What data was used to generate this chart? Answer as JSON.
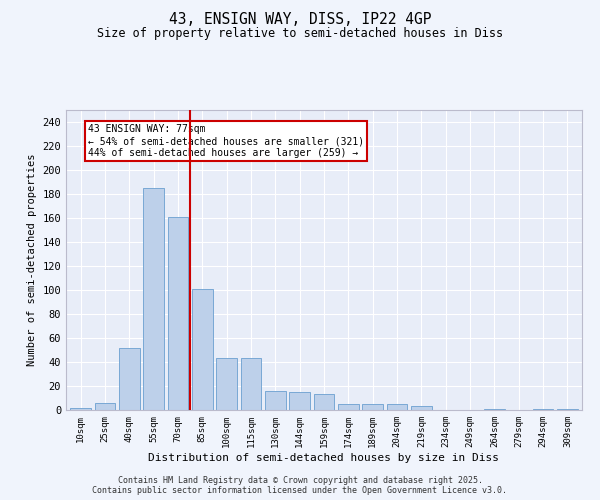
{
  "title1": "43, ENSIGN WAY, DISS, IP22 4GP",
  "title2": "Size of property relative to semi-detached houses in Diss",
  "xlabel": "Distribution of semi-detached houses by size in Diss",
  "ylabel": "Number of semi-detached properties",
  "bar_labels": [
    "10sqm",
    "25sqm",
    "40sqm",
    "55sqm",
    "70sqm",
    "85sqm",
    "100sqm",
    "115sqm",
    "130sqm",
    "144sqm",
    "159sqm",
    "174sqm",
    "189sqm",
    "204sqm",
    "219sqm",
    "234sqm",
    "249sqm",
    "264sqm",
    "279sqm",
    "294sqm",
    "309sqm"
  ],
  "bar_values": [
    2,
    6,
    52,
    185,
    161,
    101,
    43,
    43,
    16,
    15,
    13,
    5,
    5,
    5,
    3,
    0,
    0,
    1,
    0,
    1,
    1
  ],
  "bar_color": "#bdd0ea",
  "bar_edge_color": "#6a9fd0",
  "vline_x": 4.5,
  "vline_color": "#cc0000",
  "annotation_text": "43 ENSIGN WAY: 77sqm\n← 54% of semi-detached houses are smaller (321)\n44% of semi-detached houses are larger (259) →",
  "annotation_box_color": "#ffffff",
  "annotation_box_edge_color": "#cc0000",
  "ylim": [
    0,
    250
  ],
  "yticks": [
    0,
    20,
    40,
    60,
    80,
    100,
    120,
    140,
    160,
    180,
    200,
    220,
    240
  ],
  "bg_color": "#e8edf8",
  "fig_bg_color": "#f0f4fc",
  "footer1": "Contains HM Land Registry data © Crown copyright and database right 2025.",
  "footer2": "Contains public sector information licensed under the Open Government Licence v3.0."
}
